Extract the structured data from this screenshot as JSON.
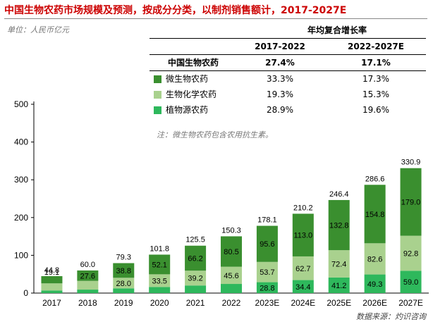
{
  "title": "中国生物农药市场规模及预测，按成分分类，以制剂销售额计，2017-2027E",
  "unit": "单位：人民币亿元",
  "source": "数据来源：灼识咨询",
  "note": "注：微生物农药包含农用抗生素。",
  "cagr_table": {
    "title": "年均复合增长率",
    "period_1": "2017-2022",
    "period_2": "2022-2027E",
    "rows": [
      {
        "name": "中国生物农药",
        "v1": "27.4%",
        "v2": "17.1%",
        "color": ""
      },
      {
        "name": "微生物农药",
        "v1": "33.3%",
        "v2": "17.3%",
        "color": "#3a8f2f"
      },
      {
        "name": "生物化学农药",
        "v1": "19.3%",
        "v2": "15.3%",
        "color": "#a9d18e"
      },
      {
        "name": "植物源农药",
        "v1": "28.9%",
        "v2": "19.6%",
        "color": "#2eb85c"
      }
    ]
  },
  "chart_data": {
    "type": "bar",
    "stacked": true,
    "categories": [
      "2017",
      "2018",
      "2019",
      "2020",
      "2021",
      "2022",
      "2023E",
      "2024E",
      "2025E",
      "2026E",
      "2027E"
    ],
    "series": [
      {
        "name": "植物源农药",
        "color": "#2eb85c",
        "values": [
          6.8,
          9.2,
          12.5,
          16.2,
          20.1,
          24.2,
          28.8,
          34.4,
          41.2,
          49.3,
          59.0
        ],
        "labels": [
          "6.8",
          "9.2",
          "12.5",
          "16.2",
          "20.1",
          "24.2",
          "28.8",
          "34.4",
          "41.2",
          "49.3",
          "59.0"
        ]
      },
      {
        "name": "生物化学农药",
        "color": "#a9d18e",
        "values": [
          18.9,
          23.1,
          28.0,
          33.5,
          39.2,
          45.6,
          53.7,
          62.7,
          72.4,
          82.6,
          92.8
        ],
        "labels": [
          "18.9",
          "23.1",
          "28.0",
          "33.5",
          "39.2",
          "45.6",
          "53.7",
          "62.7",
          "72.4",
          "82.6",
          "92.8"
        ]
      },
      {
        "name": "微生物农药",
        "color": "#3a8f2f",
        "values": [
          19.1,
          27.6,
          38.8,
          52.1,
          66.2,
          80.5,
          95.6,
          113.0,
          132.8,
          154.8,
          179.0
        ],
        "labels": [
          "19.1",
          "27.6",
          "38.8",
          "52.1",
          "66.2",
          "80.5",
          "95.6",
          "113.0",
          "132.8",
          "154.8",
          "179.0"
        ]
      }
    ],
    "totals": [
      "44.8",
      "60.0",
      "79.3",
      "101.8",
      "125.5",
      "150.3",
      "178.1",
      "210.2",
      "246.4",
      "286.6",
      "330.9"
    ],
    "total_values": [
      44.8,
      60.0,
      79.3,
      101.8,
      125.5,
      150.3,
      178.1,
      210.2,
      246.4,
      286.6,
      330.9
    ],
    "yticks": [
      "0",
      "100",
      "200",
      "300",
      "400",
      "500"
    ],
    "ylim": [
      0,
      500
    ],
    "grid": false,
    "legend": "table, top-right"
  }
}
